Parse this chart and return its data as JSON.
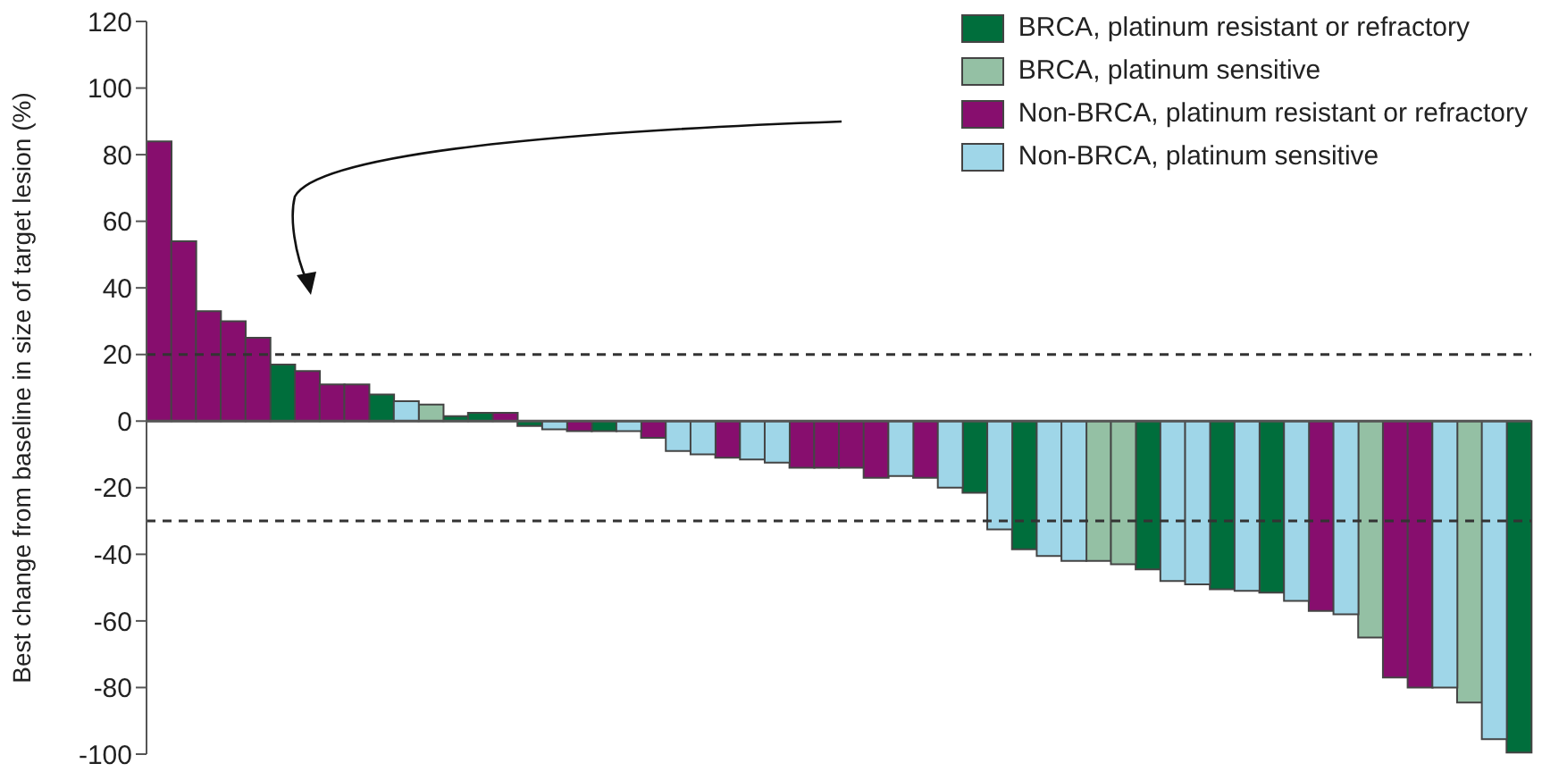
{
  "chart_data": {
    "type": "bar",
    "ylabel": "Best change from baseline in size of target lesion (%)",
    "categories": [
      null,
      null,
      null,
      null,
      null,
      null,
      null,
      null,
      null,
      null,
      null,
      null,
      null,
      null,
      null,
      null,
      null,
      null,
      null,
      null,
      null,
      null,
      null,
      null,
      null,
      null,
      null,
      null,
      null,
      null,
      null,
      null,
      null,
      null,
      null,
      null,
      null,
      null,
      null,
      null,
      null,
      null,
      null,
      null,
      null,
      null,
      null,
      null,
      null,
      null,
      null,
      null,
      null,
      null,
      null,
      null
    ],
    "series": [
      {
        "name": "BRCA, platinum resistant or refractory",
        "color": "#006e3c",
        "values": [
          null,
          null,
          null,
          null,
          null,
          17,
          null,
          null,
          null,
          8,
          null,
          null,
          1.5,
          2.5,
          null,
          -1.5,
          null,
          null,
          -3,
          null,
          null,
          null,
          null,
          null,
          null,
          null,
          null,
          null,
          null,
          null,
          null,
          null,
          null,
          -21.5,
          null,
          -38.5,
          null,
          null,
          null,
          null,
          -44.5,
          null,
          null,
          -50.5,
          null,
          -51.5,
          null,
          null,
          null,
          null,
          null,
          null,
          null,
          null,
          null,
          -99.5
        ]
      },
      {
        "name": "BRCA, platinum sensitive",
        "color": "#94c0a4",
        "values": [
          null,
          null,
          null,
          null,
          null,
          null,
          null,
          null,
          null,
          null,
          null,
          5,
          null,
          null,
          null,
          null,
          null,
          null,
          null,
          null,
          null,
          null,
          null,
          null,
          null,
          null,
          null,
          null,
          null,
          null,
          null,
          null,
          null,
          null,
          null,
          null,
          null,
          null,
          -42,
          -43,
          null,
          null,
          null,
          null,
          null,
          null,
          null,
          null,
          null,
          -65,
          null,
          null,
          null,
          -84.5,
          null,
          null
        ]
      },
      {
        "name": "Non-BRCA, platinum resistant or refractory",
        "color": "#870e6e",
        "values": [
          84,
          54,
          33,
          30,
          25,
          null,
          15,
          11,
          11,
          null,
          null,
          null,
          null,
          null,
          2.5,
          null,
          null,
          -3,
          null,
          null,
          -5,
          null,
          null,
          -11,
          null,
          null,
          -14,
          -14,
          -14,
          -17,
          null,
          -17,
          null,
          null,
          null,
          null,
          null,
          null,
          null,
          null,
          null,
          null,
          null,
          null,
          null,
          null,
          null,
          -57,
          null,
          null,
          -77,
          -80,
          null,
          null,
          null,
          null
        ]
      },
      {
        "name": "Non-BRCA, platinum sensitive",
        "color": "#9fd6e8",
        "values": [
          null,
          null,
          null,
          null,
          null,
          null,
          null,
          null,
          null,
          null,
          6,
          null,
          null,
          null,
          null,
          null,
          -2.5,
          null,
          null,
          -3,
          null,
          -9,
          -10,
          null,
          -11.5,
          -12.5,
          null,
          null,
          null,
          null,
          -16.5,
          null,
          -20,
          null,
          -32.5,
          null,
          -40.5,
          -42,
          null,
          null,
          null,
          -48,
          -49,
          null,
          -51,
          null,
          -54,
          null,
          -58,
          null,
          null,
          null,
          -80,
          null,
          -95.5,
          null
        ]
      }
    ],
    "stacked": true,
    "ylim": [
      -100,
      120
    ],
    "yticks": [
      -100,
      -80,
      -60,
      -40,
      -20,
      0,
      20,
      40,
      60,
      80,
      100,
      120
    ],
    "ref_lines": [
      {
        "axis": "y",
        "value": 0,
        "line_style": "solid"
      },
      {
        "axis": "y",
        "value": 20,
        "line_style": "dashed"
      },
      {
        "axis": "y",
        "value": -30,
        "line_style": "dashed"
      }
    ],
    "tick_labels": "y",
    "legend": "top right",
    "grid": false
  }
}
